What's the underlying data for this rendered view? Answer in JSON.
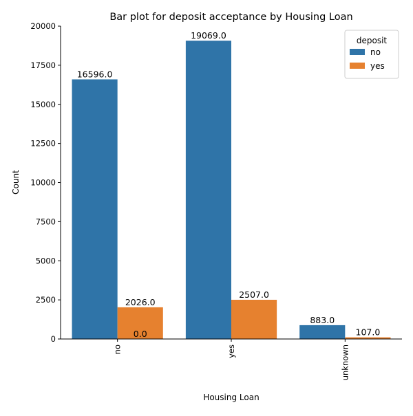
{
  "chart_data": {
    "type": "bar",
    "title": "Bar plot for deposit acceptance by Housing Loan",
    "xlabel": "Housing Loan",
    "ylabel": "Count",
    "categories": [
      "no",
      "yes",
      "unknown"
    ],
    "series": [
      {
        "name": "no",
        "values": [
          16596,
          19069,
          883
        ],
        "labels": [
          "16596.0",
          "19069.0",
          "883.0"
        ],
        "color": "#2f74a8"
      },
      {
        "name": "yes",
        "values": [
          2026,
          2507,
          107
        ],
        "labels": [
          "2026.0",
          "2507.0",
          "107.0"
        ],
        "color": "#e6812f"
      }
    ],
    "extra_labels": [
      {
        "category": "no",
        "value": 0,
        "text": "0.0"
      }
    ],
    "ylim": [
      0,
      20000
    ],
    "yticks": [
      0,
      2500,
      5000,
      7500,
      10000,
      12500,
      15000,
      17500,
      20000
    ],
    "ytick_labels": [
      "0",
      "2500",
      "5000",
      "7500",
      "10000",
      "12500",
      "15000",
      "17500",
      "20000"
    ],
    "legend": {
      "title": "deposit",
      "position": "top-right"
    },
    "grid": false
  }
}
